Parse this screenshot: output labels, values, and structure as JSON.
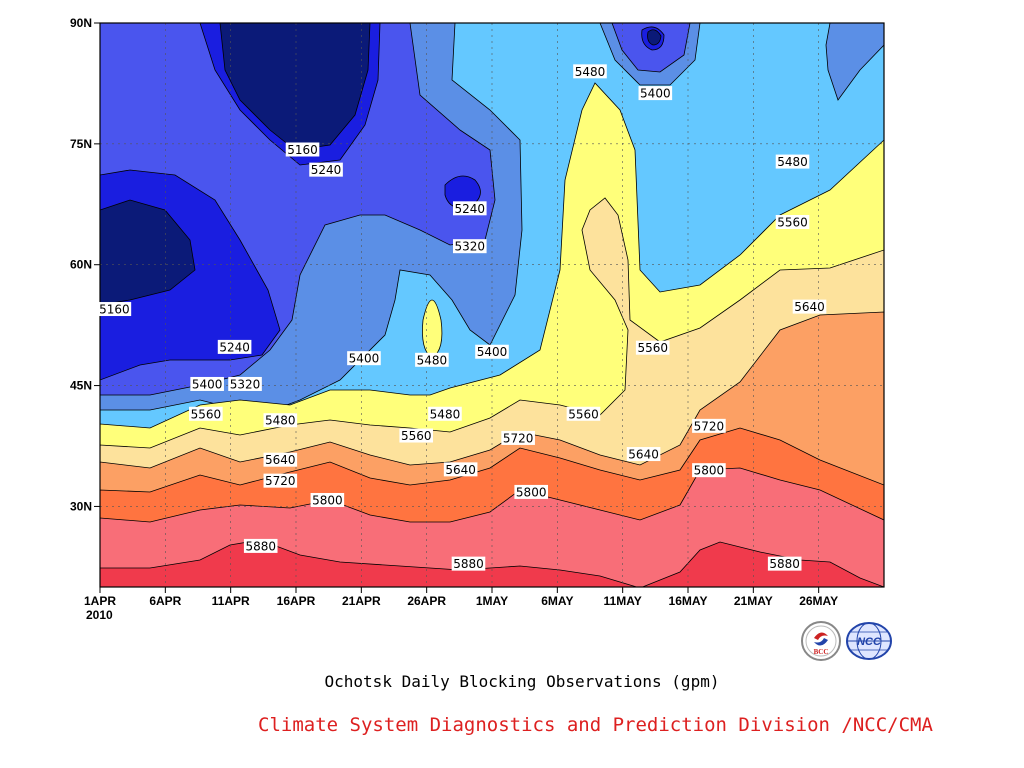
{
  "chart_data": {
    "type": "heatmap",
    "subtype": "filled-contour",
    "title": "Ochotsk Daily Blocking Observations (gpm)",
    "credit": "Climate System Diagnostics and Prediction Division /NCC/CMA",
    "xlabel": "",
    "ylabel": "",
    "x_range": [
      "2010-04-01",
      "2010-05-31"
    ],
    "y_range": [
      20,
      90
    ],
    "x_ticks": [
      {
        "label": "1APR",
        "day": 0
      },
      {
        "label": "6APR",
        "day": 5
      },
      {
        "label": "11APR",
        "day": 10
      },
      {
        "label": "16APR",
        "day": 15
      },
      {
        "label": "21APR",
        "day": 20
      },
      {
        "label": "26APR",
        "day": 25
      },
      {
        "label": "1MAY",
        "day": 30
      },
      {
        "label": "6MAY",
        "day": 35
      },
      {
        "label": "11MAY",
        "day": 40
      },
      {
        "label": "16MAY",
        "day": 45
      },
      {
        "label": "21MAY",
        "day": 50
      },
      {
        "label": "26MAY",
        "day": 55
      }
    ],
    "year_label": "2010",
    "y_ticks": [
      {
        "label": "30N",
        "lat": 30
      },
      {
        "label": "45N",
        "lat": 45
      },
      {
        "label": "60N",
        "lat": 60
      },
      {
        "label": "75N",
        "lat": 75
      },
      {
        "label": "90N",
        "lat": 90
      }
    ],
    "grid": true,
    "levels": [
      5160,
      5240,
      5320,
      5400,
      5480,
      5560,
      5640,
      5720,
      5800,
      5880
    ],
    "colors": [
      "#0b1a78",
      "#1a1ee0",
      "#4a55ee",
      "#5b8fe6",
      "#64c8ff",
      "#ffff7a",
      "#fde29c",
      "#fca064",
      "#ff7440",
      "#f86e78",
      "#f03a4c"
    ],
    "contour_labels": [
      {
        "text": "5160",
        "day": 15.5,
        "lat": 74.3
      },
      {
        "text": "5240",
        "day": 17.3,
        "lat": 71.8
      },
      {
        "text": "5240",
        "day": 28.3,
        "lat": 67.0
      },
      {
        "text": "5320",
        "day": 28.3,
        "lat": 62.3
      },
      {
        "text": "5480",
        "day": 37.5,
        "lat": 84.0
      },
      {
        "text": "5400",
        "day": 42.5,
        "lat": 81.3
      },
      {
        "text": "5480",
        "day": 53.0,
        "lat": 72.8
      },
      {
        "text": "5560",
        "day": 53.0,
        "lat": 65.3
      },
      {
        "text": "5640",
        "day": 54.3,
        "lat": 54.8
      },
      {
        "text": "5160",
        "day": 1.1,
        "lat": 54.5
      },
      {
        "text": "5240",
        "day": 10.3,
        "lat": 49.8
      },
      {
        "text": "5400",
        "day": 20.2,
        "lat": 48.4
      },
      {
        "text": "5480",
        "day": 25.4,
        "lat": 48.2
      },
      {
        "text": "5400",
        "day": 30.0,
        "lat": 49.2
      },
      {
        "text": "5400",
        "day": 8.2,
        "lat": 45.2
      },
      {
        "text": "5320",
        "day": 11.1,
        "lat": 45.2
      },
      {
        "text": "5560",
        "day": 8.1,
        "lat": 41.5
      },
      {
        "text": "5480",
        "day": 13.8,
        "lat": 40.7
      },
      {
        "text": "5480",
        "day": 26.4,
        "lat": 41.5
      },
      {
        "text": "5560",
        "day": 37.0,
        "lat": 41.5
      },
      {
        "text": "5560",
        "day": 42.3,
        "lat": 49.7
      },
      {
        "text": "5560",
        "day": 24.2,
        "lat": 38.8
      },
      {
        "text": "5720",
        "day": 32.0,
        "lat": 38.5
      },
      {
        "text": "5720",
        "day": 46.6,
        "lat": 40.0
      },
      {
        "text": "5640",
        "day": 13.8,
        "lat": 35.8
      },
      {
        "text": "5640",
        "day": 41.6,
        "lat": 36.5
      },
      {
        "text": "5640",
        "day": 27.6,
        "lat": 34.6
      },
      {
        "text": "5720",
        "day": 13.8,
        "lat": 33.2
      },
      {
        "text": "5800",
        "day": 17.4,
        "lat": 30.8
      },
      {
        "text": "5800",
        "day": 33.0,
        "lat": 31.8
      },
      {
        "text": "5800",
        "day": 46.6,
        "lat": 34.5
      },
      {
        "text": "5880",
        "day": 12.3,
        "lat": 25.1
      },
      {
        "text": "5880",
        "day": 28.2,
        "lat": 22.9
      },
      {
        "text": "5880",
        "day": 52.4,
        "lat": 22.9
      }
    ]
  },
  "logos": {
    "bcc": {
      "text": "BCC",
      "icon": "bcc-logo-icon",
      "color": "#cc2222"
    },
    "ncc": {
      "text": "NCC",
      "icon": "ncc-logo-icon",
      "color": "#2244aa"
    }
  },
  "credit_color": "#dd2020"
}
